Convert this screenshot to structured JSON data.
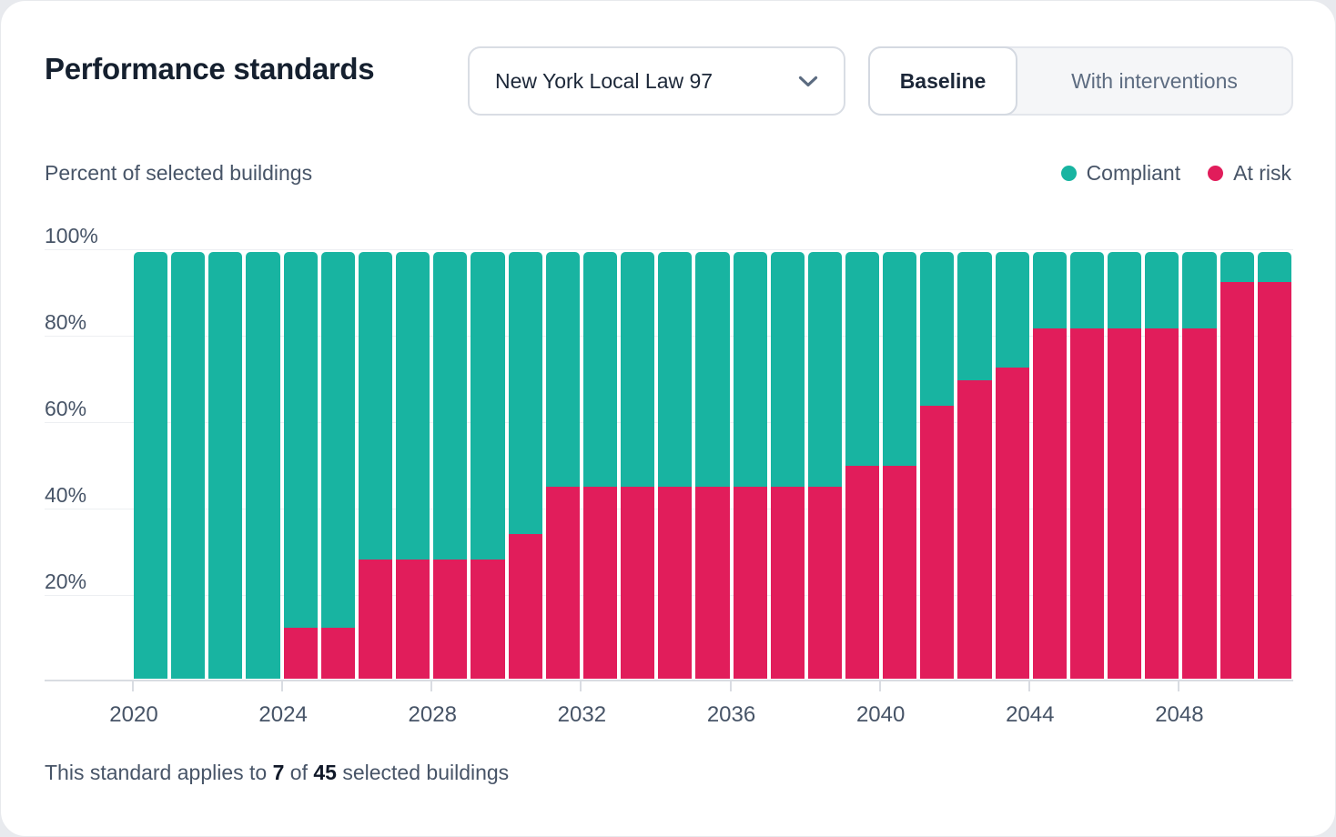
{
  "header": {
    "title": "Performance standards",
    "standard_dropdown": {
      "value": "New York Local Law 97"
    },
    "scenario_toggle": {
      "options": [
        {
          "label": "Baseline",
          "active": true
        },
        {
          "label": "With interventions",
          "active": false
        }
      ]
    }
  },
  "chart_data": {
    "type": "bar",
    "stacked": true,
    "title": "Percent of selected buildings",
    "ylabel": "Percent of selected buildings",
    "ylim": [
      0,
      100
    ],
    "grid": true,
    "legend_position": "top-right",
    "y_ticks": [
      "100%",
      "80%",
      "60%",
      "40%",
      "20%"
    ],
    "x_tick_years": [
      2020,
      2024,
      2028,
      2032,
      2036,
      2040,
      2044,
      2048
    ],
    "categories": [
      2020,
      2021,
      2022,
      2023,
      2024,
      2025,
      2026,
      2027,
      2028,
      2029,
      2030,
      2031,
      2032,
      2033,
      2034,
      2035,
      2036,
      2037,
      2038,
      2039,
      2040,
      2041,
      2042,
      2043,
      2044,
      2045,
      2046,
      2047,
      2048,
      2049,
      2050
    ],
    "series": [
      {
        "name": "Compliant",
        "color": "#18B4A1",
        "values": [
          100,
          100,
          100,
          100,
          88,
          88,
          72,
          72,
          72,
          72,
          66,
          55,
          55,
          55,
          55,
          55,
          55,
          55,
          55,
          50,
          50,
          36,
          30,
          27,
          18,
          18,
          18,
          18,
          18,
          7,
          7
        ]
      },
      {
        "name": "At risk",
        "color": "#E11D5B",
        "values": [
          0,
          0,
          0,
          0,
          12,
          12,
          28,
          28,
          28,
          28,
          34,
          45,
          45,
          45,
          45,
          45,
          45,
          45,
          45,
          50,
          50,
          64,
          70,
          73,
          82,
          82,
          82,
          82,
          82,
          93,
          93
        ]
      }
    ],
    "legend": [
      {
        "label": "Compliant",
        "color": "#18B4A1"
      },
      {
        "label": "At risk",
        "color": "#E11D5B"
      }
    ]
  },
  "footer": {
    "prefix": "This standard applies to",
    "applicable_count": "7",
    "middle": "of",
    "total_count": "45",
    "suffix": "selected buildings"
  }
}
